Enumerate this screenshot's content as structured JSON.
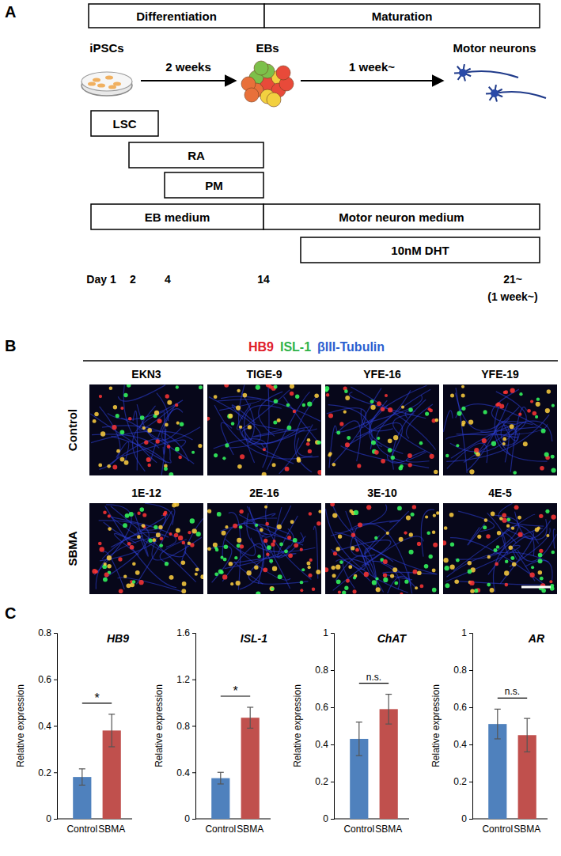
{
  "panel_labels": [
    "A",
    "B",
    "C"
  ],
  "diagram": {
    "phases": [
      "Differentiation",
      "Maturation"
    ],
    "stages": [
      "iPSCs",
      "EBs",
      "Motor neurons"
    ],
    "arrows": [
      "2 weeks",
      "1 week~"
    ],
    "treatments": [
      "LSC",
      "RA",
      "PM"
    ],
    "media": [
      "EB medium",
      "Motor neuron medium"
    ],
    "hormone": "10nM DHT",
    "days": [
      "Day 1",
      "2",
      "4",
      "14",
      "21~"
    ],
    "duration": "(1 week~)"
  },
  "images": {
    "stains": [
      {
        "label": "HB9",
        "color": "#e0202a"
      },
      {
        "label": "ISL-1",
        "color": "#2fb34a"
      },
      {
        "label": "βIII-Tubulin",
        "color": "#2a5fd0"
      }
    ],
    "rows": [
      {
        "label": "Control",
        "lines": [
          "EKN3",
          "TIGE-9",
          "YFE-16",
          "YFE-19"
        ]
      },
      {
        "label": "SBMA",
        "lines": [
          "1E-12",
          "2E-16",
          "3E-10",
          "4E-5"
        ]
      }
    ]
  },
  "chart_data": [
    {
      "type": "bar",
      "title": "HB9",
      "ylabel": "Relative expression",
      "categories": [
        "Control",
        "SBMA"
      ],
      "values": [
        0.18,
        0.38
      ],
      "errors": [
        0.035,
        0.07
      ],
      "colors": [
        "#4f81bd",
        "#c0504d"
      ],
      "ylim": [
        0,
        0.8
      ],
      "yticks": [
        0,
        0.2,
        0.4,
        0.6,
        0.8
      ],
      "significance": "*"
    },
    {
      "type": "bar",
      "title": "ISL-1",
      "ylabel": "Relative expression",
      "categories": [
        "Control",
        "SBMA"
      ],
      "values": [
        0.35,
        0.87
      ],
      "errors": [
        0.05,
        0.09
      ],
      "colors": [
        "#4f81bd",
        "#c0504d"
      ],
      "ylim": [
        0,
        1.6
      ],
      "yticks": [
        0,
        0.4,
        0.8,
        1.2,
        1.6
      ],
      "significance": "*"
    },
    {
      "type": "bar",
      "title": "ChAT",
      "ylabel": "Relative expression",
      "categories": [
        "Control",
        "SBMA"
      ],
      "values": [
        0.43,
        0.59
      ],
      "errors": [
        0.09,
        0.08
      ],
      "colors": [
        "#4f81bd",
        "#c0504d"
      ],
      "ylim": [
        0,
        1
      ],
      "yticks": [
        0,
        0.2,
        0.4,
        0.6,
        0.8,
        1
      ],
      "significance": "n.s."
    },
    {
      "type": "bar",
      "title": "AR",
      "ylabel": "Relative expression",
      "categories": [
        "Control",
        "SBMA"
      ],
      "values": [
        0.51,
        0.45
      ],
      "errors": [
        0.08,
        0.09
      ],
      "colors": [
        "#4f81bd",
        "#c0504d"
      ],
      "ylim": [
        0,
        1
      ],
      "yticks": [
        0,
        0.2,
        0.4,
        0.6,
        0.8,
        1
      ],
      "significance": "n.s."
    }
  ]
}
